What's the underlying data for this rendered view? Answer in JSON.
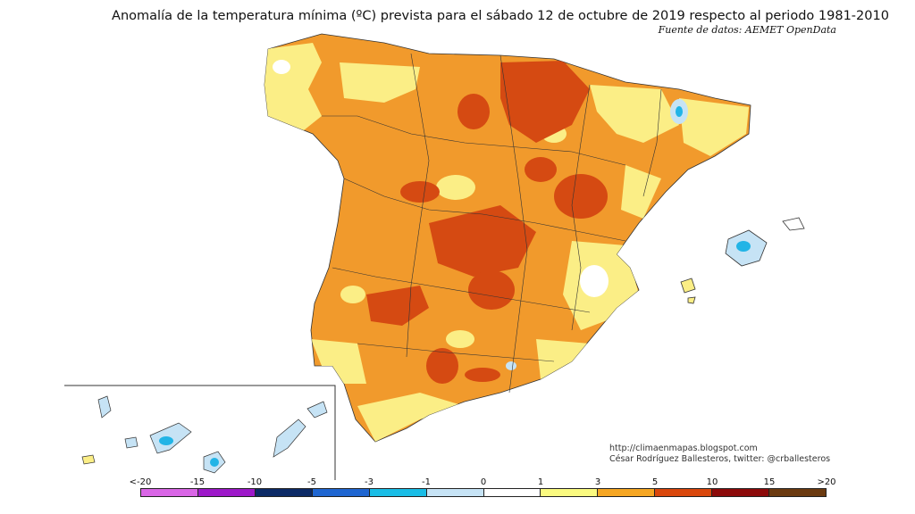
{
  "title": "Anomalía de la temperatura mínima (ºC) prevista para el sábado 12 de octubre de 2019 respecto al periodo 1981-2010",
  "source": "Fuente de datos: AEMET OpenData",
  "credits": {
    "url": "http://climaenmapas.blogspot.com",
    "author": "César Rodríguez Ballesteros, twitter: @crballesteros"
  },
  "legend": {
    "labels": [
      "<-20",
      "-15",
      "-10",
      "-5",
      "-3",
      "-1",
      "0",
      "1",
      "3",
      "5",
      "10",
      "15",
      ">20"
    ],
    "colors": [
      "#d966e6",
      "#9d18c9",
      "#0c2a66",
      "#1f66d1",
      "#19bde6",
      "#c6e3f5",
      "#ffffff",
      "#fafa80",
      "#f5a623",
      "#d9470c",
      "#8c0a0a",
      "#6b3a10"
    ]
  },
  "map_colors": {
    "yellow": "#fbee86",
    "orange": "#f19a2c",
    "red": "#d54a12",
    "light_blue": "#c6e3f5",
    "blue": "#22b4e6",
    "border": "#333333"
  }
}
